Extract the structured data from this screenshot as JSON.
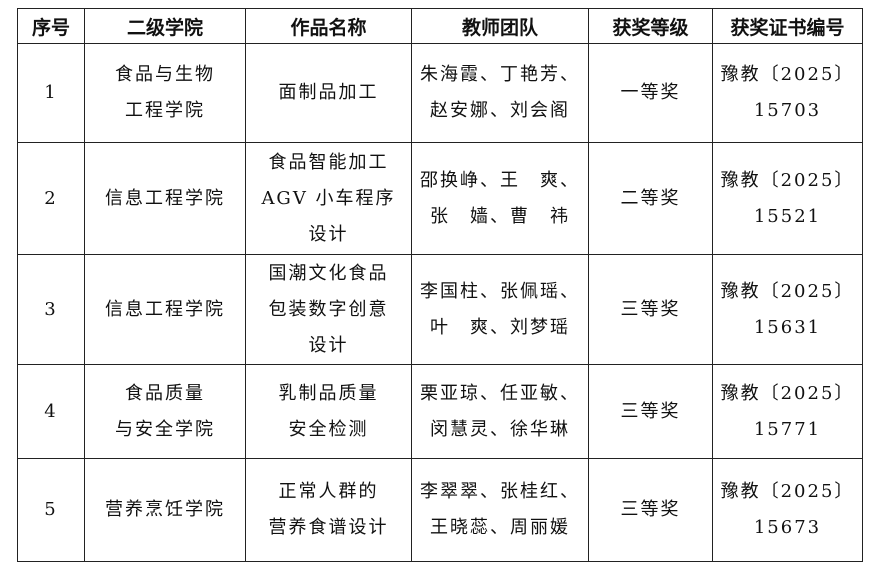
{
  "table": {
    "headers": [
      "序号",
      "二级学院",
      "作品名称",
      "教师团队",
      "获奖等级",
      "获奖证书编号"
    ],
    "rows": [
      {
        "index": "1",
        "college": [
          "食品与生物",
          "工程学院"
        ],
        "work": [
          "面制品加工"
        ],
        "team": [
          "朱海霞、丁艳芳、",
          "赵安娜、刘会阁"
        ],
        "award": "一等奖",
        "cert": [
          "豫教〔2025〕",
          "15703"
        ]
      },
      {
        "index": "2",
        "college": [
          "信息工程学院"
        ],
        "work": [
          "食品智能加工",
          "AGV 小车程序",
          "设计"
        ],
        "team": [
          "邵换峥、王　爽、",
          "张　嫱、曹　祎"
        ],
        "award": "二等奖",
        "cert": [
          "豫教〔2025〕",
          "15521"
        ]
      },
      {
        "index": "3",
        "college": [
          "信息工程学院"
        ],
        "work": [
          "国潮文化食品",
          "包装数字创意",
          "设计"
        ],
        "team": [
          "李国柱、张佩瑶、",
          "叶　爽、刘梦瑶"
        ],
        "award": "三等奖",
        "cert": [
          "豫教〔2025〕",
          "15631"
        ]
      },
      {
        "index": "4",
        "college": [
          "食品质量",
          "与安全学院"
        ],
        "work": [
          "乳制品质量",
          "安全检测"
        ],
        "team": [
          "栗亚琼、任亚敏、",
          "闵慧灵、徐华琳"
        ],
        "award": "三等奖",
        "cert": [
          "豫教〔2025〕",
          "15771"
        ]
      },
      {
        "index": "5",
        "college": [
          "营养烹饪学院"
        ],
        "work": [
          "正常人群的",
          "营养食谱设计"
        ],
        "team": [
          "李翠翠、张桂红、",
          "王晓蕊、周丽媛"
        ],
        "award": "三等奖",
        "cert": [
          "豫教〔2025〕",
          "15673"
        ]
      }
    ]
  }
}
